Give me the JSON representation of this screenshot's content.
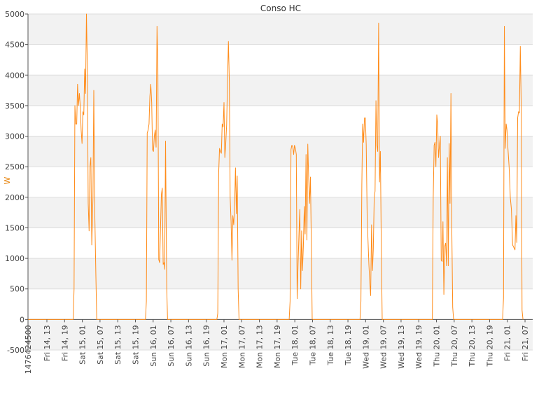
{
  "chart_data": {
    "type": "line",
    "title": "Conso HC",
    "xlabel": "",
    "ylabel": "W",
    "ylim": [
      -500,
      5000
    ],
    "yticks": [
      -500,
      0,
      500,
      1000,
      1500,
      2000,
      2500,
      3000,
      3500,
      4000,
      4500,
      5000
    ],
    "x_unit": "hours since first tick",
    "xlim": [
      0,
      171
    ],
    "x_tick_labels": [
      "1476424500",
      "Fri 14, 13",
      "Fri 14, 19",
      "Sat 15, 01",
      "Sat 15, 07",
      "Sat 15, 13",
      "Sat 15, 19",
      "Sun 16, 01",
      "Sun 16, 07",
      "Sun 16, 13",
      "Sun 16, 19",
      "Mon 17, 01",
      "Mon 17, 07",
      "Mon 17, 13",
      "Mon 17, 19",
      "Tue 18, 01",
      "Tue 18, 07",
      "Tue 18, 13",
      "Tue 18, 19",
      "Wed 19, 01",
      "Wed 19, 07",
      "Wed 19, 13",
      "Wed 19, 19",
      "Thu 20, 01",
      "Thu 20, 07",
      "Thu 20, 13",
      "Thu 20, 19",
      "Fri 21, 01",
      "Fri 21, 07"
    ],
    "x_tick_values": [
      0,
      6.4,
      12.4,
      18.4,
      24.4,
      30.4,
      36.4,
      42.4,
      48.4,
      54.4,
      60.4,
      66.4,
      72.4,
      78.4,
      84.4,
      90.4,
      96.4,
      102.4,
      108.4,
      114.4,
      120.4,
      126.4,
      132.4,
      138.4,
      144.4,
      150.4,
      156.4,
      162.4,
      168.4
    ],
    "series": [
      {
        "color": "#ff8c1a",
        "points": [
          [
            0,
            0
          ],
          [
            15.3,
            0
          ],
          [
            15.6,
            500
          ],
          [
            15.9,
            3500
          ],
          [
            16.2,
            3200
          ],
          [
            16.5,
            3200
          ],
          [
            16.8,
            3850
          ],
          [
            17.1,
            3500
          ],
          [
            17.4,
            3700
          ],
          [
            17.7,
            3500
          ],
          [
            18.0,
            3100
          ],
          [
            18.3,
            2880
          ],
          [
            18.6,
            3400
          ],
          [
            18.9,
            3350
          ],
          [
            19.2,
            4100
          ],
          [
            19.5,
            3700
          ],
          [
            19.8,
            5000
          ],
          [
            20.1,
            4200
          ],
          [
            20.4,
            1900
          ],
          [
            20.7,
            1450
          ],
          [
            21.0,
            2500
          ],
          [
            21.3,
            2650
          ],
          [
            21.6,
            1220
          ],
          [
            22.0,
            2000
          ],
          [
            22.3,
            3750
          ],
          [
            22.6,
            1800
          ],
          [
            23.0,
            700
          ],
          [
            23.3,
            0
          ],
          [
            39.8,
            0
          ],
          [
            40.1,
            300
          ],
          [
            40.4,
            3050
          ],
          [
            40.7,
            3100
          ],
          [
            41.0,
            3200
          ],
          [
            41.3,
            3650
          ],
          [
            41.6,
            3850
          ],
          [
            41.9,
            3550
          ],
          [
            42.2,
            2780
          ],
          [
            42.5,
            2750
          ],
          [
            42.8,
            3000
          ],
          [
            43.1,
            3100
          ],
          [
            43.4,
            2820
          ],
          [
            43.7,
            4800
          ],
          [
            44.0,
            4200
          ],
          [
            44.3,
            980
          ],
          [
            44.6,
            930
          ],
          [
            44.9,
            1500
          ],
          [
            45.2,
            2050
          ],
          [
            45.5,
            2150
          ],
          [
            45.8,
            900
          ],
          [
            46.1,
            930
          ],
          [
            46.3,
            820
          ],
          [
            46.6,
            2920
          ],
          [
            47.0,
            500
          ],
          [
            47.3,
            0
          ],
          [
            64.0,
            0
          ],
          [
            64.3,
            100
          ],
          [
            64.6,
            2400
          ],
          [
            64.9,
            2800
          ],
          [
            65.2,
            2750
          ],
          [
            65.5,
            2720
          ],
          [
            65.8,
            3200
          ],
          [
            66.1,
            3150
          ],
          [
            66.4,
            3550
          ],
          [
            66.7,
            2650
          ],
          [
            67.0,
            2880
          ],
          [
            67.3,
            3200
          ],
          [
            67.6,
            3900
          ],
          [
            67.9,
            4550
          ],
          [
            68.2,
            3900
          ],
          [
            68.5,
            2000
          ],
          [
            68.8,
            1600
          ],
          [
            69.1,
            970
          ],
          [
            69.4,
            1700
          ],
          [
            69.7,
            1550
          ],
          [
            70.0,
            1850
          ],
          [
            70.3,
            2480
          ],
          [
            70.6,
            1730
          ],
          [
            70.9,
            2350
          ],
          [
            71.2,
            500
          ],
          [
            71.5,
            0
          ],
          [
            88.5,
            0
          ],
          [
            88.8,
            300
          ],
          [
            89.1,
            2780
          ],
          [
            89.4,
            2850
          ],
          [
            89.7,
            2830
          ],
          [
            90.0,
            2700
          ],
          [
            90.3,
            2850
          ],
          [
            90.6,
            2800
          ],
          [
            90.9,
            2700
          ],
          [
            91.2,
            340
          ],
          [
            91.5,
            900
          ],
          [
            91.8,
            1400
          ],
          [
            92.1,
            1800
          ],
          [
            92.4,
            500
          ],
          [
            92.7,
            1450
          ],
          [
            93.0,
            800
          ],
          [
            93.3,
            1200
          ],
          [
            93.6,
            1850
          ],
          [
            93.9,
            1400
          ],
          [
            94.2,
            2700
          ],
          [
            94.5,
            1300
          ],
          [
            94.8,
            2870
          ],
          [
            95.1,
            2300
          ],
          [
            95.4,
            1900
          ],
          [
            95.7,
            2330
          ],
          [
            96.0,
            1200
          ],
          [
            96.3,
            0
          ],
          [
            112.5,
            0
          ],
          [
            112.8,
            300
          ],
          [
            113.1,
            2200
          ],
          [
            113.4,
            3200
          ],
          [
            113.7,
            2900
          ],
          [
            114.0,
            3300
          ],
          [
            114.3,
            3300
          ],
          [
            114.6,
            2850
          ],
          [
            114.9,
            1700
          ],
          [
            115.2,
            1300
          ],
          [
            115.5,
            900
          ],
          [
            115.8,
            600
          ],
          [
            116.1,
            390
          ],
          [
            116.4,
            1550
          ],
          [
            116.7,
            800
          ],
          [
            117.0,
            1150
          ],
          [
            117.3,
            2000
          ],
          [
            117.6,
            2100
          ],
          [
            117.9,
            3580
          ],
          [
            118.2,
            2850
          ],
          [
            118.5,
            2750
          ],
          [
            118.8,
            4850
          ],
          [
            119.1,
            2250
          ],
          [
            119.4,
            2750
          ],
          [
            119.7,
            1200
          ],
          [
            120.0,
            0
          ],
          [
            137.0,
            0
          ],
          [
            137.3,
            2000
          ],
          [
            137.6,
            2850
          ],
          [
            137.9,
            2900
          ],
          [
            138.2,
            2500
          ],
          [
            138.5,
            3350
          ],
          [
            138.8,
            3200
          ],
          [
            139.1,
            2650
          ],
          [
            139.4,
            2850
          ],
          [
            139.7,
            3000
          ],
          [
            140.0,
            970
          ],
          [
            140.3,
            950
          ],
          [
            140.6,
            1600
          ],
          [
            140.9,
            410
          ],
          [
            141.2,
            1200
          ],
          [
            141.5,
            1250
          ],
          [
            141.8,
            880
          ],
          [
            142.1,
            2650
          ],
          [
            142.4,
            880
          ],
          [
            142.7,
            2880
          ],
          [
            143.0,
            1900
          ],
          [
            143.3,
            3700
          ],
          [
            143.6,
            1400
          ],
          [
            143.9,
            200
          ],
          [
            144.2,
            0
          ],
          [
            160.8,
            0
          ],
          [
            161.1,
            350
          ],
          [
            161.4,
            4800
          ],
          [
            161.7,
            2800
          ],
          [
            162.0,
            3200
          ],
          [
            162.3,
            3100
          ],
          [
            162.6,
            2800
          ],
          [
            163.0,
            2500
          ],
          [
            163.4,
            2000
          ],
          [
            163.8,
            1800
          ],
          [
            164.2,
            1220
          ],
          [
            164.6,
            1180
          ],
          [
            165.0,
            1140
          ],
          [
            165.3,
            1700
          ],
          [
            165.6,
            1260
          ],
          [
            165.9,
            3300
          ],
          [
            166.2,
            3400
          ],
          [
            166.5,
            3380
          ],
          [
            166.8,
            4470
          ],
          [
            167.1,
            3500
          ],
          [
            167.4,
            150
          ],
          [
            167.7,
            0
          ]
        ]
      }
    ],
    "grid": true,
    "band_colors": [
      "#f2f2f2",
      "#ffffff"
    ],
    "gridline_color": "#dddddd",
    "legend": "none"
  }
}
